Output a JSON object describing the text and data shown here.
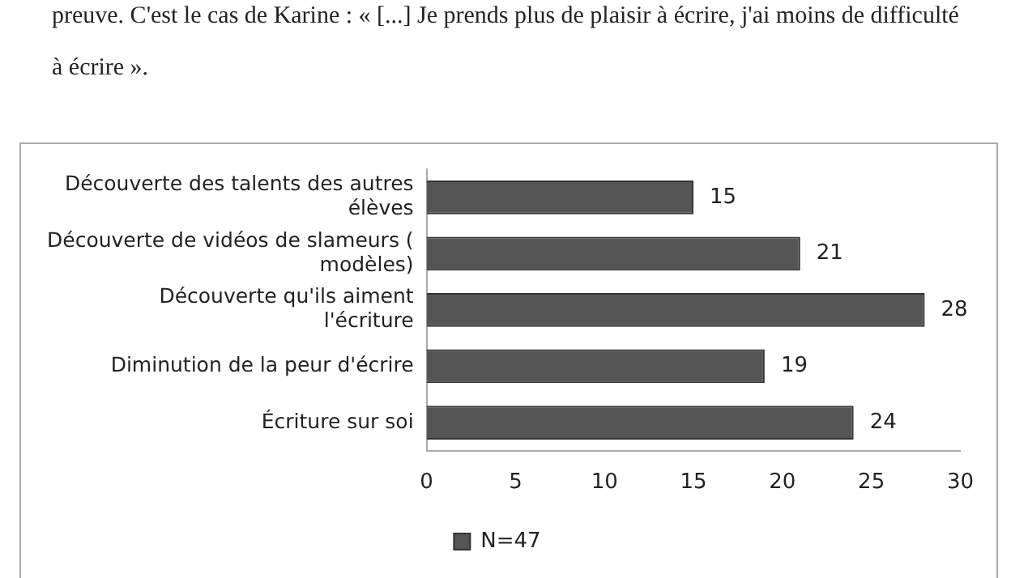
{
  "chart_data": {
    "type": "bar",
    "orientation": "horizontal",
    "categories": [
      "Découverte des talents des autres élèves",
      "Découverte de vidéos de slameurs ( modèles)",
      "Découverte qu'ils aiment l'écriture",
      "Diminution de la peur d'écrire",
      "Écriture sur soi"
    ],
    "series": [
      {
        "name": "N=47",
        "color": "#555555",
        "values": [
          15,
          21,
          28,
          19,
          24
        ]
      }
    ],
    "xlim": [
      0,
      30
    ],
    "xticks": [
      0,
      5,
      10,
      15,
      20,
      25,
      30
    ],
    "grid": false,
    "legend": "bottom",
    "data_labels": true,
    "annotations": [
      "preuve. C'est le cas de Karine : « [...] Je prends plus de plaisir à écrire, j'ai moins de difficulté à écrire »."
    ]
  }
}
